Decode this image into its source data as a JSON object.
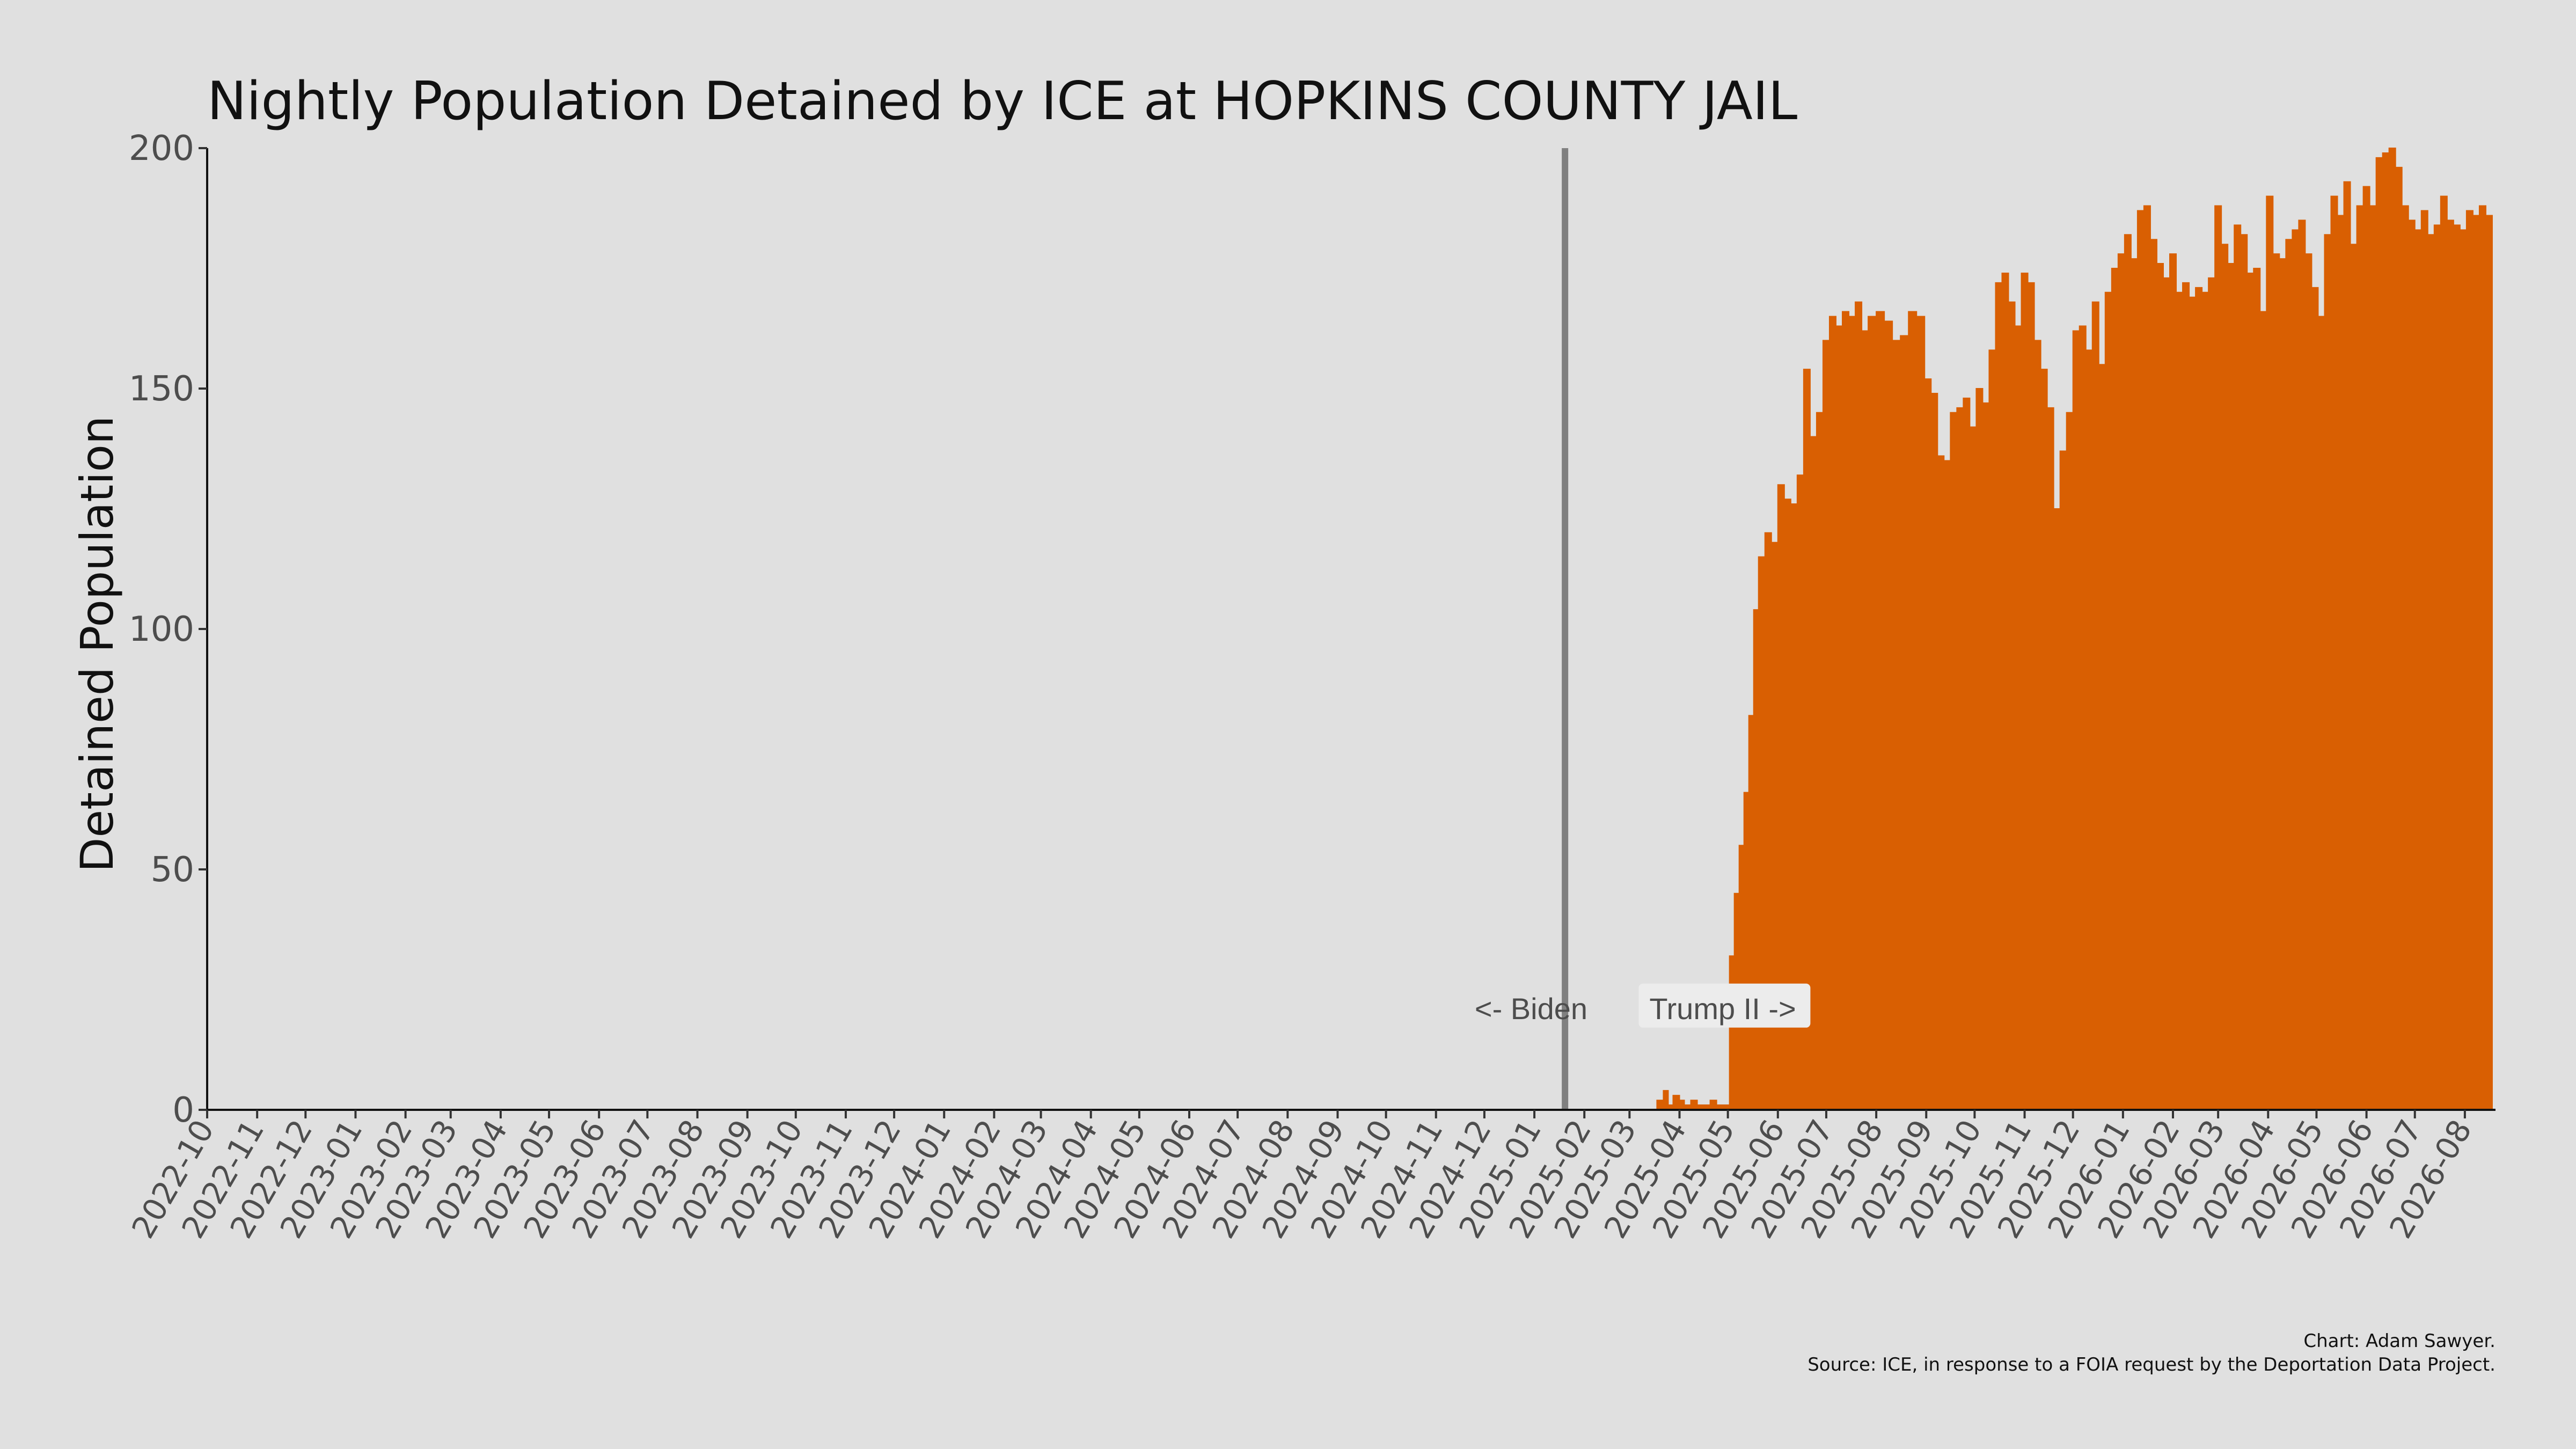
{
  "chart_data": {
    "type": "area",
    "title": "Nightly Population Detained by ICE at HOPKINS COUNTY JAIL",
    "xlabel": "",
    "ylabel": "Detained Population",
    "ylim": [
      0,
      200
    ],
    "yticks": [
      0,
      50,
      100,
      150,
      200
    ],
    "xlim": [
      "2022-10-01",
      "2026-08-20"
    ],
    "x_tick_labels": [
      "2022-10",
      "2022-11",
      "2022-12",
      "2023-01",
      "2023-02",
      "2023-03",
      "2023-04",
      "2023-05",
      "2023-06",
      "2023-07",
      "2023-08",
      "2023-09",
      "2023-10",
      "2023-11",
      "2023-12",
      "2024-01",
      "2024-02",
      "2024-03",
      "2024-04",
      "2024-05",
      "2024-06",
      "2024-07",
      "2024-08",
      "2024-09",
      "2024-10",
      "2024-11",
      "2024-12",
      "2025-01",
      "2025-02",
      "2025-03",
      "2025-04",
      "2025-05",
      "2025-06",
      "2025-07",
      "2025-08",
      "2025-09",
      "2025-10",
      "2025-11",
      "2025-12",
      "2026-01",
      "2026-02",
      "2026-03",
      "2026-04",
      "2026-05",
      "2026-06",
      "2026-07",
      "2026-08"
    ],
    "grid": false,
    "bar_color": "#d95f02",
    "vline": {
      "x": "2025-01-20",
      "color": "#808080"
    },
    "annotations": [
      {
        "text": "<- Biden",
        "x": "2024-11-25",
        "y": 20
      },
      {
        "text": "Trump II ->",
        "x": "2025-03-10",
        "y": 20
      }
    ],
    "series": [
      {
        "values_x": [
          "2025-03-18",
          "2025-03-22",
          "2025-03-25",
          "2025-03-28",
          "2025-04-01",
          "2025-04-04",
          "2025-04-08",
          "2025-04-12",
          "2025-04-16",
          "2025-04-20",
          "2025-04-24",
          "2025-04-30",
          "2025-05-02",
          "2025-05-05",
          "2025-05-08",
          "2025-05-11",
          "2025-05-14",
          "2025-05-17",
          "2025-05-20",
          "2025-05-24",
          "2025-05-28",
          "2025-06-01",
          "2025-06-05",
          "2025-06-09",
          "2025-06-13",
          "2025-06-17",
          "2025-06-21",
          "2025-06-25",
          "2025-06-29",
          "2025-07-03",
          "2025-07-07",
          "2025-07-11",
          "2025-07-15",
          "2025-07-19",
          "2025-07-23",
          "2025-07-27",
          "2025-08-01",
          "2025-08-06",
          "2025-08-11",
          "2025-08-16",
          "2025-08-21",
          "2025-08-26",
          "2025-08-31",
          "2025-09-04",
          "2025-09-08",
          "2025-09-12",
          "2025-09-16",
          "2025-09-20",
          "2025-09-24",
          "2025-09-28",
          "2025-10-02",
          "2025-10-06",
          "2025-10-10",
          "2025-10-14",
          "2025-10-18",
          "2025-10-22",
          "2025-10-26",
          "2025-10-30",
          "2025-11-03",
          "2025-11-07",
          "2025-11-11",
          "2025-11-15",
          "2025-11-19",
          "2025-11-23",
          "2025-11-27",
          "2025-12-01",
          "2025-12-05",
          "2025-12-09",
          "2025-12-13",
          "2025-12-17",
          "2025-12-21",
          "2025-12-25",
          "2025-12-29",
          "2026-01-02",
          "2026-01-06",
          "2026-01-10",
          "2026-01-14",
          "2026-01-18",
          "2026-01-22",
          "2026-01-26",
          "2026-01-30",
          "2026-02-03",
          "2026-02-07",
          "2026-02-11",
          "2026-02-15",
          "2026-02-19",
          "2026-02-23",
          "2026-02-27",
          "2026-03-03",
          "2026-03-07",
          "2026-03-11",
          "2026-03-15",
          "2026-03-19",
          "2026-03-23",
          "2026-03-27",
          "2026-03-31",
          "2026-04-04",
          "2026-04-08",
          "2026-04-12",
          "2026-04-16",
          "2026-04-20",
          "2026-04-24",
          "2026-04-28",
          "2026-05-02",
          "2026-05-06",
          "2026-05-10",
          "2026-05-14",
          "2026-05-18",
          "2026-05-22",
          "2026-05-26",
          "2026-05-30",
          "2026-06-03",
          "2026-06-07",
          "2026-06-11",
          "2026-06-15",
          "2026-06-19",
          "2026-06-23",
          "2026-06-27",
          "2026-07-01",
          "2026-07-05",
          "2026-07-09",
          "2026-07-13",
          "2026-07-17",
          "2026-07-21",
          "2026-07-25",
          "2026-07-29",
          "2026-08-02",
          "2026-08-06",
          "2026-08-10",
          "2026-08-14"
        ],
        "values_y": [
          2,
          4,
          1,
          3,
          2,
          1,
          2,
          1,
          1,
          2,
          1,
          1,
          32,
          45,
          55,
          66,
          82,
          104,
          115,
          120,
          118,
          130,
          127,
          126,
          132,
          154,
          140,
          145,
          160,
          165,
          163,
          166,
          165,
          168,
          162,
          165,
          166,
          164,
          160,
          161,
          166,
          165,
          152,
          149,
          136,
          135,
          145,
          146,
          148,
          142,
          150,
          147,
          158,
          172,
          174,
          168,
          163,
          174,
          172,
          160,
          154,
          146,
          125,
          137,
          145,
          162,
          163,
          158,
          168,
          155,
          170,
          175,
          178,
          182,
          177,
          187,
          188,
          181,
          176,
          173,
          178,
          170,
          172,
          169,
          171,
          170,
          173,
          188,
          180,
          176,
          184,
          182,
          174,
          175,
          166,
          190,
          178,
          177,
          181,
          183,
          185,
          178,
          171,
          165,
          182,
          190,
          186,
          193,
          180,
          188,
          192,
          188,
          198,
          199,
          200,
          196,
          188,
          185,
          183,
          187,
          182,
          184,
          190,
          185,
          184,
          183,
          187,
          186,
          188,
          186
        ]
      }
    ]
  },
  "caption": {
    "line1": "Chart: Adam Sawyer.",
    "line2": "Source: ICE, in response to a FOIA request by the Deportation Data Project."
  }
}
